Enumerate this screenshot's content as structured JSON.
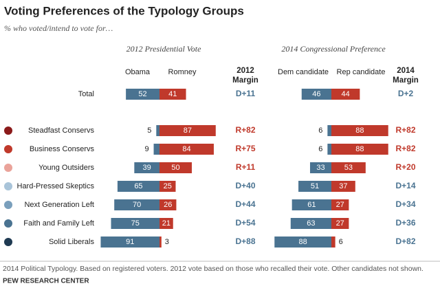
{
  "chart_data": {
    "type": "bar",
    "title": "Voting Preferences of the Typology Groups",
    "subtitle": "% who voted/intend to vote for…",
    "categories": [
      "Total",
      "Steadfast Conservs",
      "Business Conservs",
      "Young Outsiders",
      "Hard-Pressed Skeptics",
      "Next Generation Left",
      "Faith and Family Left",
      "Solid Liberals"
    ],
    "category_colors": [
      null,
      "#8b1a1a",
      "#c0392b",
      "#eaa39a",
      "#a9c4d9",
      "#7a9fbc",
      "#4a7391",
      "#1f3a52"
    ],
    "panels": [
      {
        "title": "2012 Presidential Vote",
        "margin_header": [
          "2012",
          "Margin"
        ],
        "series": [
          {
            "name": "Obama",
            "color": "#4a7391",
            "values": [
              52,
              5,
              9,
              39,
              65,
              70,
              75,
              91
            ]
          },
          {
            "name": "Romney",
            "color": "#c0392b",
            "values": [
              41,
              87,
              84,
              50,
              25,
              26,
              21,
              3
            ]
          }
        ],
        "margins": [
          "D+11",
          "R+82",
          "R+75",
          "R+11",
          "D+40",
          "D+44",
          "D+54",
          "D+88"
        ]
      },
      {
        "title": "2014 Congressional Preference",
        "margin_header": [
          "2014",
          "Margin"
        ],
        "series": [
          {
            "name": "Dem candidate",
            "color": "#4a7391",
            "values": [
              46,
              6,
              6,
              33,
              51,
              61,
              63,
              88
            ]
          },
          {
            "name": "Rep candidate",
            "color": "#c0392b",
            "values": [
              44,
              88,
              88,
              53,
              37,
              27,
              27,
              6
            ]
          }
        ],
        "margins": [
          "D+2",
          "R+82",
          "R+82",
          "R+20",
          "D+14",
          "D+34",
          "D+36",
          "D+82"
        ]
      }
    ],
    "footnote": "2014 Political Typology. Based on registered voters. 2012 vote based on those who recalled their vote. Other candidates not shown.",
    "source": "PEW RESEARCH CENTER"
  }
}
